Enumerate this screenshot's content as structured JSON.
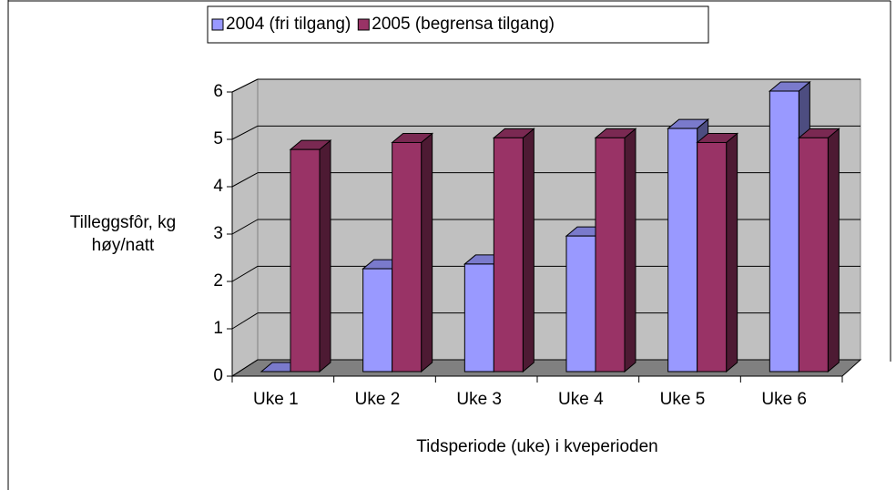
{
  "chart_data": {
    "type": "bar3d",
    "categories": [
      "Uke 1",
      "Uke 2",
      "Uke 3",
      "Uke 4",
      "Uke 5",
      "Uke 6"
    ],
    "series": [
      {
        "name": "2004 (fri tilgang)",
        "color": "#9999ff",
        "values": [
          0,
          2.2,
          2.3,
          2.9,
          5.2,
          6.0
        ]
      },
      {
        "name": "2005 (begrensa tilgang)",
        "color": "#993366",
        "values": [
          4.75,
          4.9,
          5.0,
          5.0,
          4.9,
          5.0
        ]
      }
    ],
    "ylabel": [
      "Tilleggsfôr, kg",
      "høy/natt"
    ],
    "xlabel": "Tidsperiode (uke) i kveperioden",
    "ylim": [
      0,
      6
    ],
    "yticks": [
      0,
      1,
      2,
      3,
      4,
      5,
      6
    ],
    "grid": true,
    "legend": "top"
  }
}
